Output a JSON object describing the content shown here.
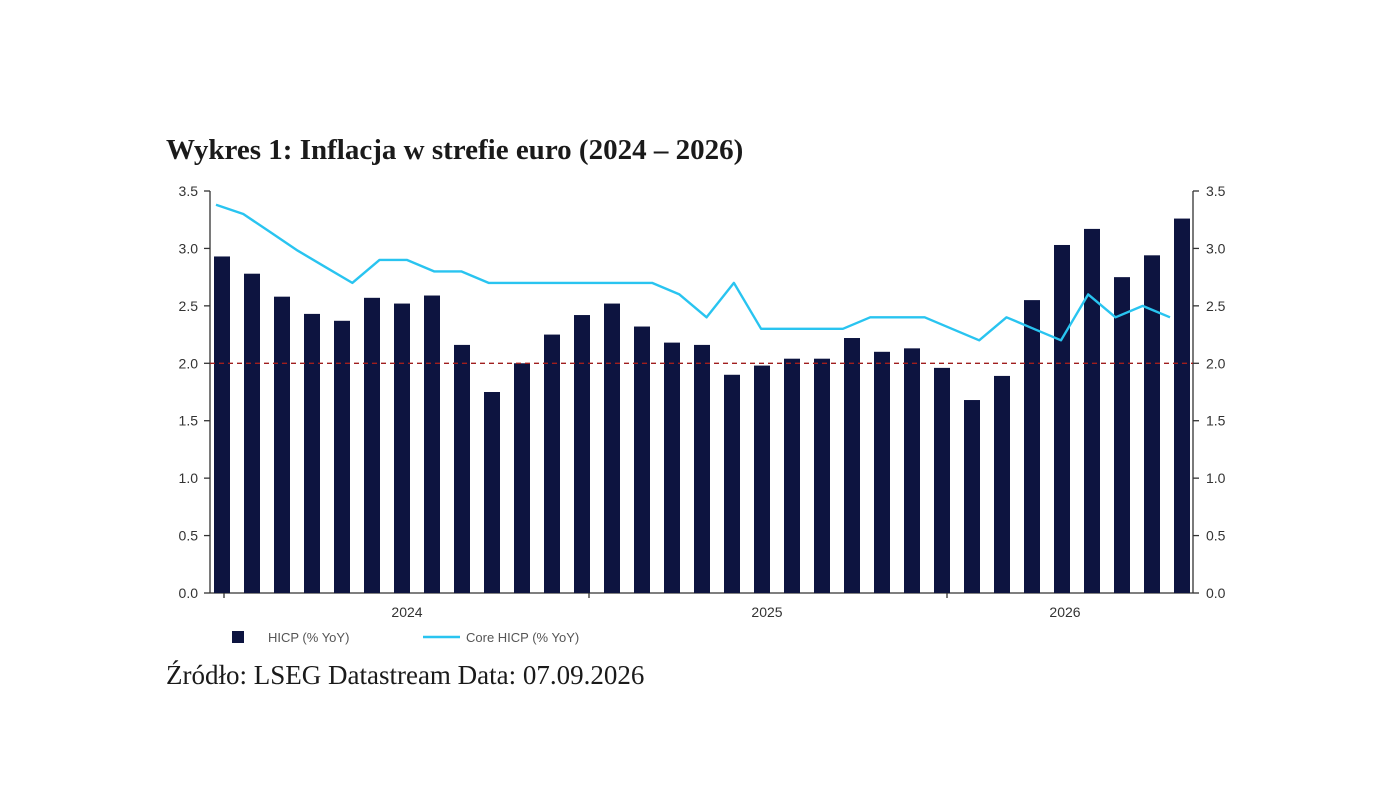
{
  "page": {
    "title": "Wykres 1: Inflacja w strefie euro (2024 – 2026)",
    "source": "Źródło: LSEG Datastream Data: 07.09.2026"
  },
  "chart_data": {
    "type": "bar",
    "title": "Wykres 1: Inflacja w strefie euro (2024 – 2026)",
    "xlabel": "",
    "ylabel": "",
    "ylim": [
      0,
      3.5
    ],
    "yticks": [
      "0.0",
      "0.5",
      "1.0",
      "1.5",
      "2.0",
      "2.5",
      "3.0",
      "3.5"
    ],
    "year_labels": [
      "2024",
      "2025",
      "2026"
    ],
    "reference_line": 2.0,
    "grid": false,
    "legend_position": "bottom-left",
    "colors": {
      "bars": "#0d1440",
      "line": "#29c4f0",
      "reference": "#a01e1e"
    },
    "series": [
      {
        "name": "HICP (% YoY)",
        "type": "bar",
        "values": [
          2.93,
          2.78,
          2.58,
          2.43,
          2.37,
          2.57,
          2.52,
          2.59,
          2.16,
          1.75,
          2.0,
          2.25,
          2.42,
          2.52,
          2.32,
          2.18,
          2.16,
          1.9,
          1.98,
          2.04,
          2.04,
          2.22,
          2.1,
          2.13,
          1.96,
          1.68,
          1.89,
          2.55,
          3.03,
          3.17,
          2.75,
          2.94,
          3.26
        ]
      },
      {
        "name": "Core HICP (% YoY)",
        "type": "line",
        "values": [
          3.38,
          3.3,
          3.14,
          2.98,
          2.84,
          2.7,
          2.9,
          2.9,
          2.8,
          2.8,
          2.7,
          2.7,
          2.7,
          2.7,
          2.7,
          2.7,
          2.7,
          2.6,
          2.4,
          2.7,
          2.3,
          2.3,
          2.3,
          2.3,
          2.4,
          2.4,
          2.4,
          2.3,
          2.2,
          2.4,
          2.3,
          2.2,
          2.6,
          2.4,
          2.5,
          2.4
        ]
      }
    ]
  }
}
